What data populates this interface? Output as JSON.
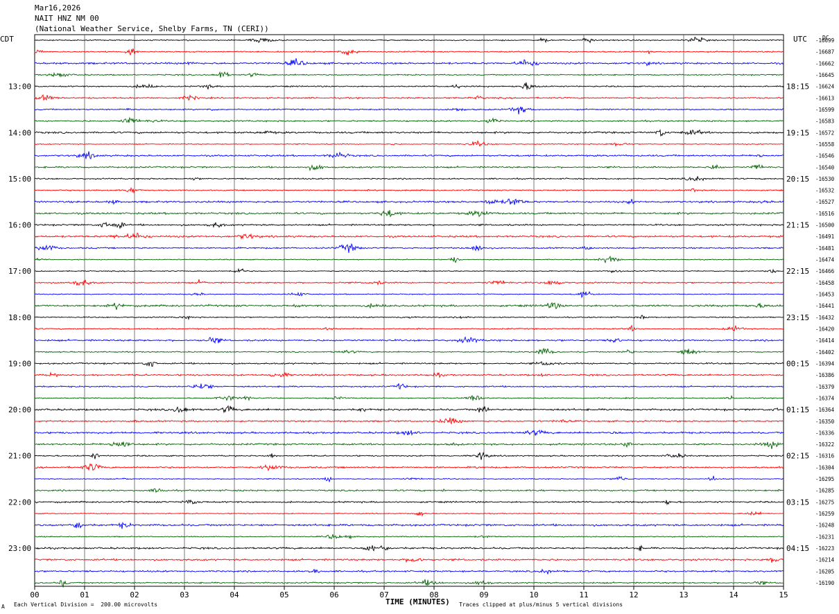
{
  "header": {
    "date": "Mar16,2026",
    "station": "NAIT HNZ NM 00",
    "agency": "(National Weather Service, Shelby Farms, TN (CERI))"
  },
  "left_tz": "CDT",
  "right_tz": "UTC",
  "dc_label": "DC",
  "footer": {
    "scale": "Each Vertical Division =  200.00 microvolts",
    "xlabel": "TIME (MINUTES)",
    "clip": "Traces clipped at plus/minus 5 vertical divisions",
    "corner": "A"
  },
  "chart_data": {
    "type": "line",
    "xlabel": "TIME (MINUTES)",
    "xlim": [
      0,
      15
    ],
    "x_ticks": [
      "00",
      "01",
      "02",
      "03",
      "04",
      "05",
      "06",
      "07",
      "08",
      "09",
      "10",
      "11",
      "12",
      "13",
      "14",
      "15"
    ],
    "left_hour_labels": [
      "13:00",
      "14:00",
      "15:00",
      "16:00",
      "17:00",
      "18:00",
      "19:00",
      "20:00",
      "21:00",
      "22:00",
      "23:00"
    ],
    "right_hour_labels": [
      "18:15",
      "19:15",
      "20:15",
      "21:15",
      "22:15",
      "23:15",
      "00:15",
      "01:15",
      "02:15",
      "03:15",
      "04:15"
    ],
    "trace_colors": [
      "#000000",
      "#ff0000",
      "#0000ff",
      "#006400"
    ],
    "dc_offsets": [
      -16699,
      -16687,
      -16662,
      -16645,
      -16624,
      -16613,
      -16599,
      -16583,
      -16572,
      -16558,
      -16546,
      -16540,
      -16530,
      -16532,
      -16527,
      -16516,
      -16500,
      -16491,
      -16481,
      -16474,
      -16466,
      -16458,
      -16453,
      -16441,
      -16432,
      -16420,
      -16414,
      -16402,
      -16394,
      -16386,
      -16379,
      -16374,
      -16364,
      -16350,
      -16336,
      -16322,
      -16316,
      -16304,
      -16295,
      -16285,
      -16275,
      -16259,
      -16248,
      -16231,
      -16223,
      -16214,
      -16205,
      -16190
    ]
  }
}
